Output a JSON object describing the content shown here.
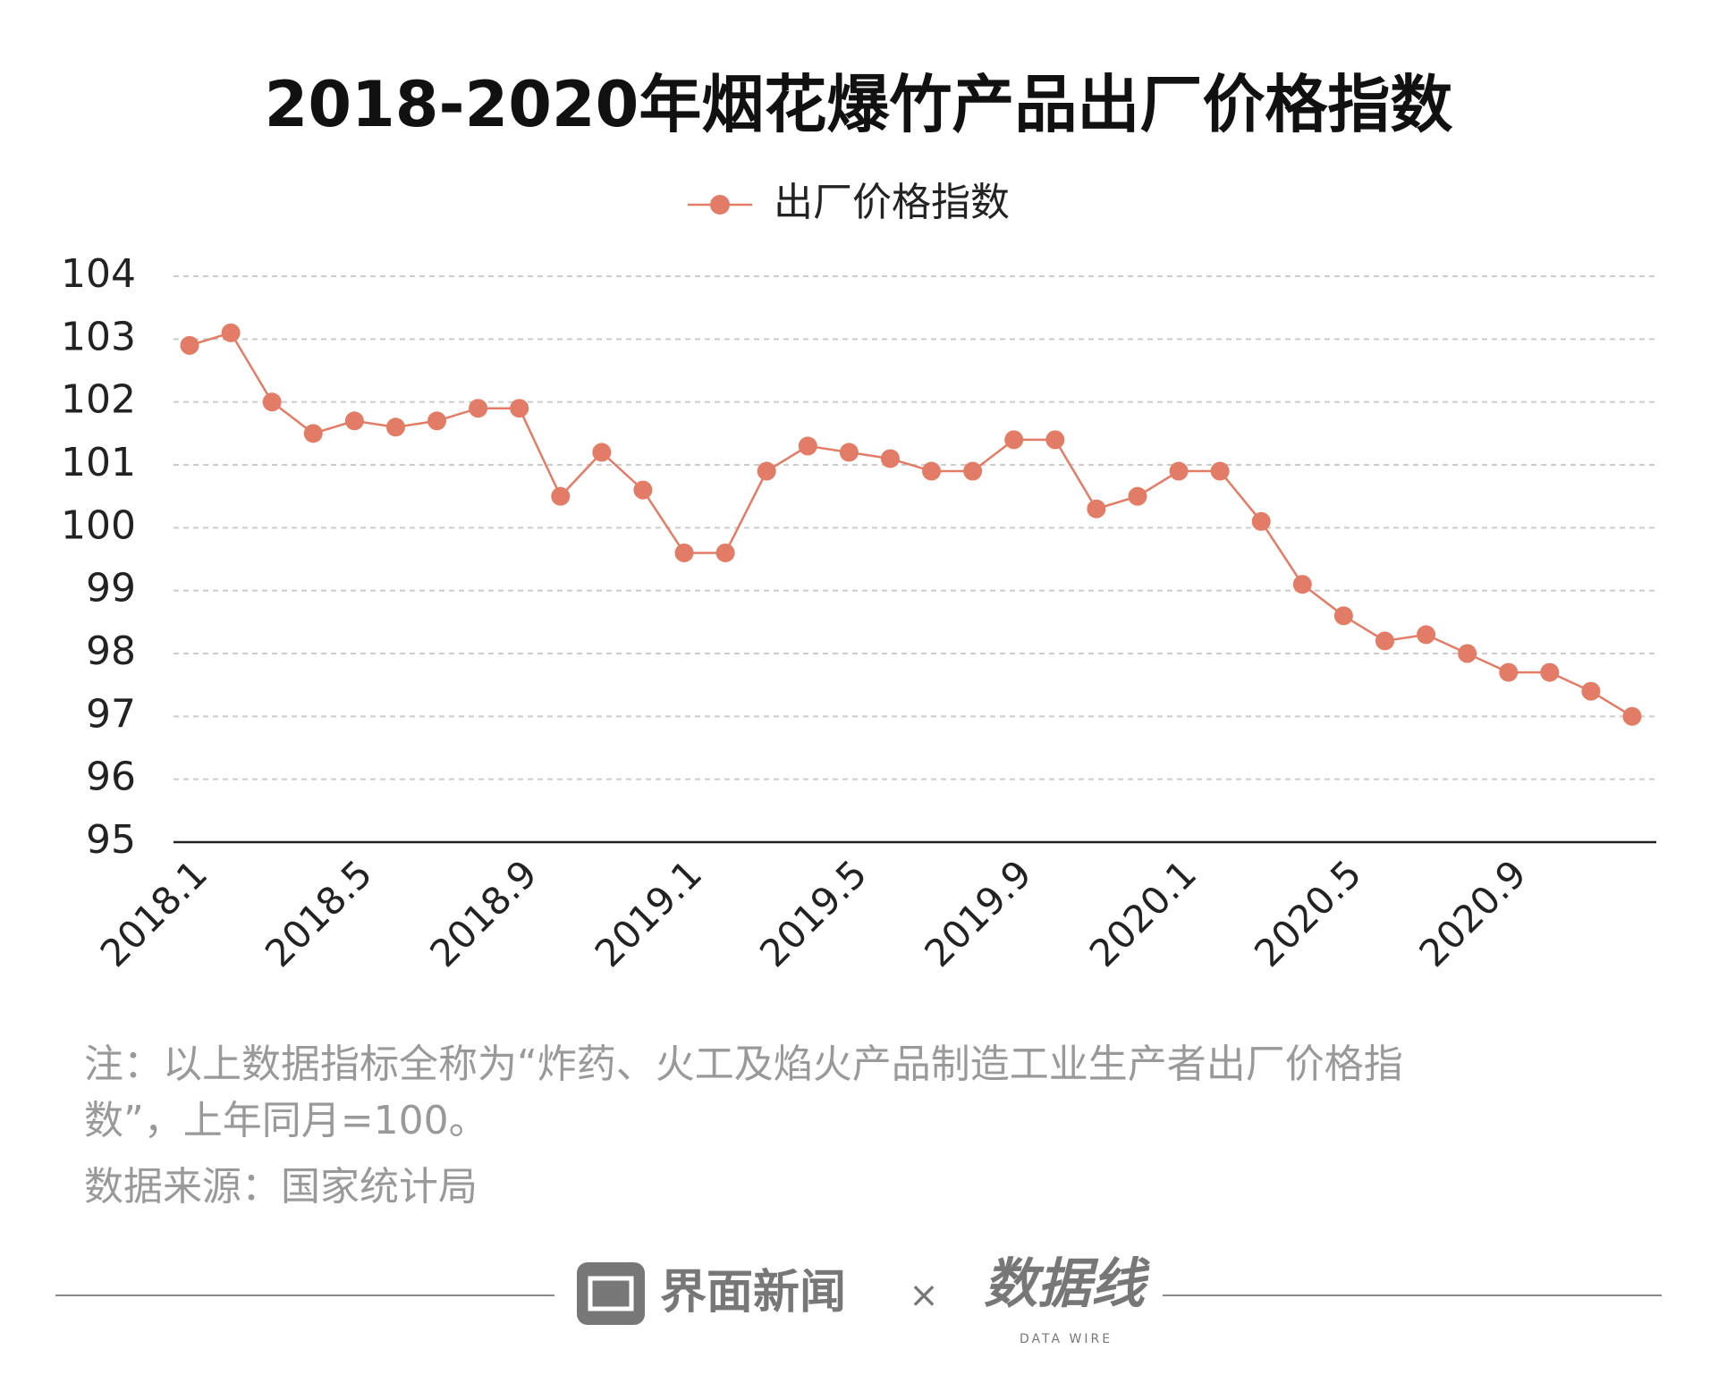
{
  "chart_data": {
    "type": "line",
    "title": "2018-2020年烟花爆竹产品出厂价格指数",
    "categories": [
      "2018.1",
      null,
      null,
      null,
      "2018.5",
      null,
      null,
      null,
      "2018.9",
      null,
      null,
      null,
      "2019.1",
      null,
      null,
      null,
      "2019.5",
      null,
      null,
      null,
      "2019.9",
      null,
      null,
      null,
      "2020.1",
      null,
      null,
      null,
      "2020.5",
      null,
      null,
      null,
      "2020.9",
      null,
      null,
      null
    ],
    "series": [
      {
        "name": "出厂价格指数",
        "color": "#e27c66",
        "values": [
          102.9,
          103.1,
          102.0,
          101.5,
          101.7,
          101.6,
          101.7,
          101.9,
          101.9,
          100.5,
          101.2,
          100.6,
          99.6,
          99.6,
          100.9,
          101.3,
          101.2,
          101.1,
          100.9,
          100.9,
          101.4,
          101.4,
          100.3,
          100.5,
          100.9,
          100.9,
          100.1,
          99.1,
          98.6,
          98.2,
          98.3,
          98.0,
          97.7,
          97.7,
          97.4,
          97.0
        ]
      }
    ],
    "ylim": [
      95,
      104
    ],
    "yticks": [
      95,
      96,
      97,
      98,
      99,
      100,
      101,
      102,
      103,
      104
    ],
    "grid": true,
    "legend": "top"
  },
  "notes": [
    "注：以上数据指标全称为“炸药、火工及焰火产品制造工业生产者出厂价格指",
    "数”，上年同月=100。",
    "数据来源：国家统计局"
  ],
  "footer": {
    "brand": "界面新闻",
    "separator": "×",
    "partner": "数据线",
    "partner_sub": "DATA WIRE"
  }
}
